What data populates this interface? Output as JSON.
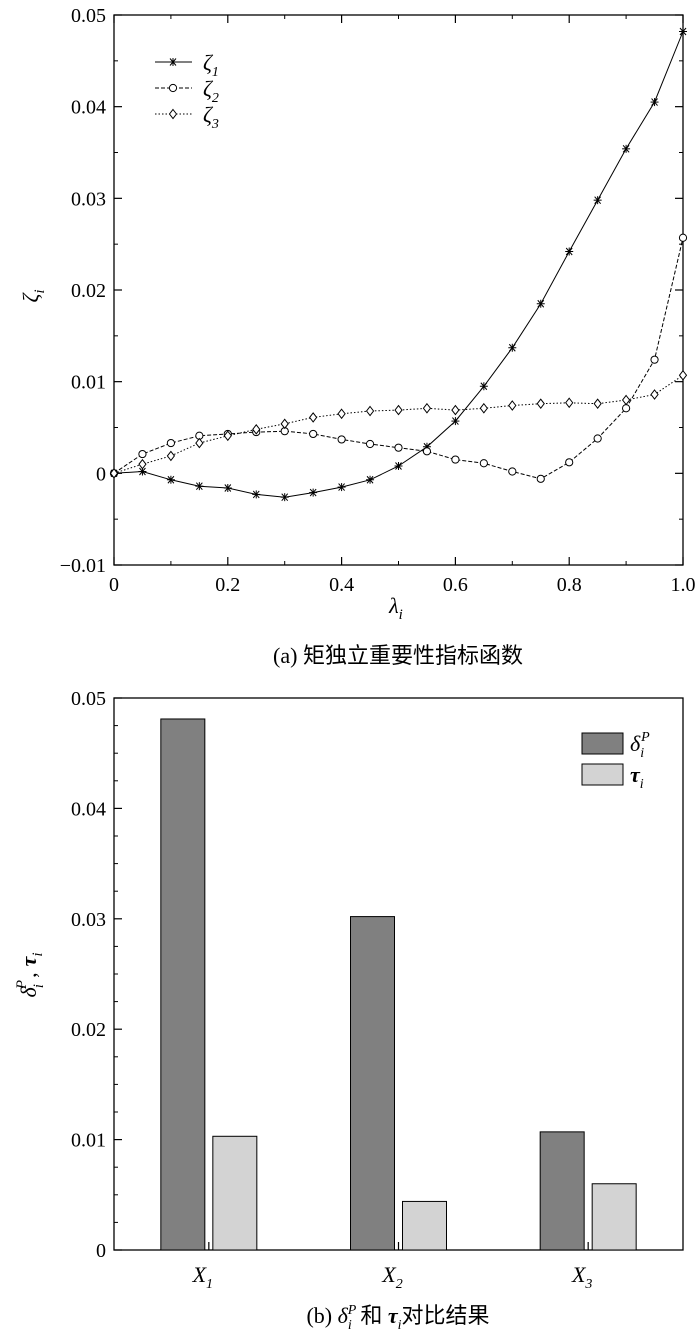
{
  "chart_data": [
    {
      "type": "line",
      "caption": "(a) 矩独立重要性指标函数",
      "xlabel": "λ",
      "xlabel_sub": "i",
      "ylabel": "ζ",
      "ylabel_sub": "i",
      "xlim": [
        0,
        1
      ],
      "ylim": [
        -0.01,
        0.05
      ],
      "x_ticks": [
        "0",
        "0.2",
        "0.4",
        "0.6",
        "0.8",
        "1.0"
      ],
      "y_ticks": [
        "−0.01",
        "0",
        "0.01",
        "0.02",
        "0.03",
        "0.04",
        "0.05"
      ],
      "x_tick_values": [
        0,
        0.2,
        0.4,
        0.6,
        0.8,
        1.0
      ],
      "y_tick_values": [
        -0.01,
        0,
        0.01,
        0.02,
        0.03,
        0.04,
        0.05
      ],
      "legend_position": "top-left",
      "x": [
        0,
        0.05,
        0.1,
        0.15,
        0.2,
        0.25,
        0.3,
        0.35,
        0.4,
        0.45,
        0.5,
        0.55,
        0.6,
        0.65,
        0.7,
        0.75,
        0.8,
        0.85,
        0.9,
        0.95,
        1.0
      ],
      "series": [
        {
          "name": "ζ",
          "sub": "1",
          "marker": "asterisk",
          "dash": "solid",
          "values": [
            0,
            0.0002,
            -0.0007,
            -0.0014,
            -0.0016,
            -0.0023,
            -0.0026,
            -0.0021,
            -0.0015,
            -0.0007,
            0.0008,
            0.0029,
            0.0057,
            0.0095,
            0.0137,
            0.0185,
            0.0242,
            0.0298,
            0.0354,
            0.0405,
            0.0482
          ]
        },
        {
          "name": "ζ",
          "sub": "2",
          "marker": "circle",
          "dash": "dashed",
          "values": [
            0,
            0.0021,
            0.0033,
            0.0041,
            0.0043,
            0.0045,
            0.0046,
            0.0043,
            0.0037,
            0.0032,
            0.0028,
            0.0024,
            0.0015,
            0.0011,
            0.0002,
            -0.0006,
            0.0012,
            0.0038,
            0.0071,
            0.0124,
            0.0257
          ]
        },
        {
          "name": "ζ",
          "sub": "3",
          "marker": "diamond",
          "dash": "dotted",
          "values": [
            0,
            0.001,
            0.0019,
            0.0033,
            0.0041,
            0.0048,
            0.0054,
            0.0061,
            0.0065,
            0.0068,
            0.0069,
            0.0071,
            0.0069,
            0.0071,
            0.0074,
            0.0076,
            0.0077,
            0.0076,
            0.008,
            0.0086,
            0.0107
          ]
        }
      ]
    },
    {
      "type": "bar",
      "caption_prefix": "(b) ",
      "caption_delta": "δ",
      "caption_delta_sub": "i",
      "caption_delta_sup": "P",
      "caption_mid": "和 ",
      "caption_tau": "τ",
      "caption_tau_sub": "i",
      "caption_suffix": "对比结果",
      "ylabel": "δ",
      "ylabel_sub": "i",
      "ylabel_sup": "P",
      "ylabel_sep": ",",
      "ylabel2": "τ",
      "ylabel2_sub": "i",
      "ylim": [
        0,
        0.05
      ],
      "y_ticks": [
        "0",
        "0.01",
        "0.02",
        "0.03",
        "0.04",
        "0.05"
      ],
      "y_tick_values": [
        0,
        0.01,
        0.02,
        0.03,
        0.04,
        0.05
      ],
      "legend_position": "top-right",
      "categories": [
        {
          "name": "X",
          "sub": "1"
        },
        {
          "name": "X",
          "sub": "2"
        },
        {
          "name": "X",
          "sub": "3"
        }
      ],
      "series": [
        {
          "name": "δ",
          "sub": "i",
          "sup": "P",
          "color": "#808080",
          "values": [
            0.0481,
            0.0302,
            0.0107
          ]
        },
        {
          "name": "τ",
          "sub": "i",
          "color": "#d3d3d3",
          "values": [
            0.0103,
            0.0044,
            0.006
          ]
        }
      ]
    }
  ]
}
